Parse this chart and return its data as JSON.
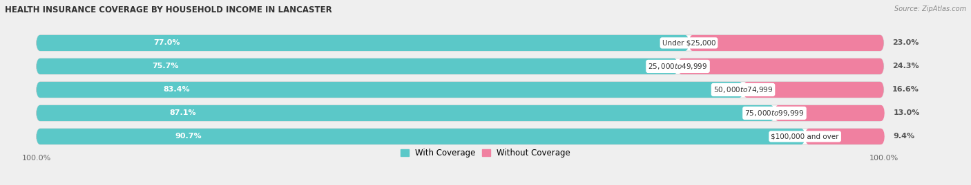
{
  "title": "HEALTH INSURANCE COVERAGE BY HOUSEHOLD INCOME IN LANCASTER",
  "source": "Source: ZipAtlas.com",
  "categories": [
    "Under $25,000",
    "$25,000 to $49,999",
    "$50,000 to $74,999",
    "$75,000 to $99,999",
    "$100,000 and over"
  ],
  "with_coverage": [
    77.0,
    75.7,
    83.4,
    87.1,
    90.7
  ],
  "without_coverage": [
    23.0,
    24.3,
    16.6,
    13.0,
    9.4
  ],
  "color_with": "#5BC8C8",
  "color_without": "#F080A0",
  "bg_color": "#efefef",
  "bar_bg": "#ffffff",
  "bar_height": 0.68,
  "legend_label_with": "With Coverage",
  "legend_label_without": "Without Coverage"
}
